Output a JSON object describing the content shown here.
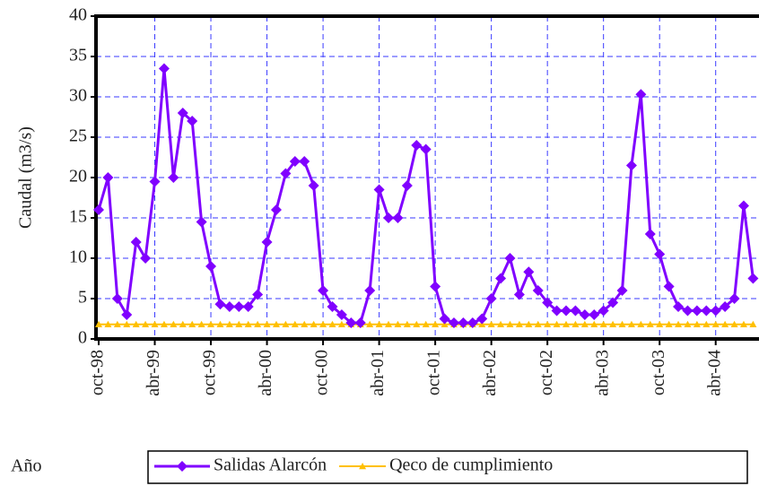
{
  "chart_data": {
    "type": "line",
    "y_label": "Caudal (m3/s)",
    "x_label": "Año",
    "categories": [
      "oct-98",
      null,
      null,
      null,
      null,
      null,
      "abr-99",
      null,
      null,
      null,
      null,
      null,
      "oct-99",
      null,
      null,
      null,
      null,
      null,
      "abr-00",
      null,
      null,
      null,
      null,
      null,
      "oct-00",
      null,
      null,
      null,
      null,
      null,
      "abr-01",
      null,
      null,
      null,
      null,
      null,
      "oct-01",
      null,
      null,
      null,
      null,
      null,
      "abr-02",
      null,
      null,
      null,
      null,
      null,
      "oct-02",
      null,
      null,
      null,
      null,
      null,
      "abr-03",
      null,
      null,
      null,
      null,
      null,
      "oct-03",
      null,
      null,
      null,
      null,
      null,
      "abr-04",
      null,
      null,
      null,
      null
    ],
    "series": [
      {
        "name": "Salidas Alarcón",
        "color": "#8000ff",
        "marker": "diamond",
        "values": [
          16,
          20,
          5,
          3,
          12,
          10,
          19.5,
          33.5,
          20,
          28,
          27,
          14.5,
          9,
          4.3,
          4,
          4,
          4,
          5.5,
          12,
          16,
          20.5,
          22,
          22,
          19,
          6,
          4,
          3,
          2,
          2,
          6,
          18.5,
          15,
          15,
          19,
          24,
          23.5,
          6.5,
          2.5,
          2,
          2,
          2,
          2.5,
          5,
          7.5,
          10,
          5.5,
          8.3,
          6,
          4.5,
          3.5,
          3.5,
          3.5,
          3,
          3,
          3.5,
          4.5,
          6,
          21.5,
          30.3,
          13,
          10.5,
          6.5,
          4,
          3.5,
          3.5,
          3.5,
          3.5,
          4,
          5,
          16.5,
          7.5
        ]
      },
      {
        "name": "Qeco de cumplimiento",
        "color": "#ffc000",
        "marker": "triangle",
        "values": [
          1.8,
          1.8,
          1.8,
          1.8,
          1.8,
          1.8,
          1.8,
          1.8,
          1.8,
          1.8,
          1.8,
          1.8,
          1.8,
          1.8,
          1.8,
          1.8,
          1.8,
          1.8,
          1.8,
          1.8,
          1.8,
          1.8,
          1.8,
          1.8,
          1.8,
          1.8,
          1.8,
          1.8,
          1.8,
          1.8,
          1.8,
          1.8,
          1.8,
          1.8,
          1.8,
          1.8,
          1.8,
          1.8,
          1.8,
          1.8,
          1.8,
          1.8,
          1.8,
          1.8,
          1.8,
          1.8,
          1.8,
          1.8,
          1.8,
          1.8,
          1.8,
          1.8,
          1.8,
          1.8,
          1.8,
          1.8,
          1.8,
          1.8,
          1.8,
          1.8,
          1.8,
          1.8,
          1.8,
          1.8,
          1.8,
          1.8,
          1.8,
          1.8,
          1.8,
          1.8,
          1.8
        ]
      }
    ],
    "ylim": [
      0,
      40
    ],
    "yticks": [
      0,
      5,
      10,
      15,
      20,
      25,
      30,
      35,
      40
    ],
    "grid": true,
    "grid_color": "#3a3aff",
    "legend": "bottom"
  }
}
